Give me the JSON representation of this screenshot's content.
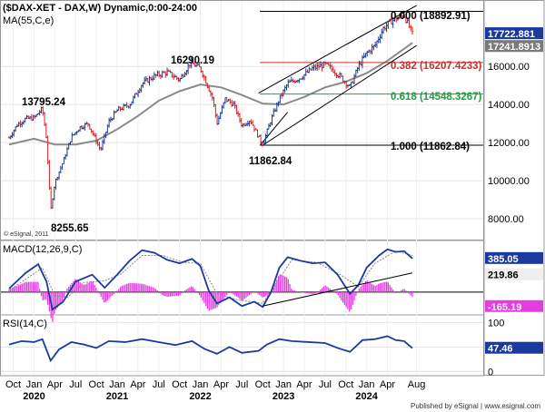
{
  "header": {
    "symbol": "($DAX-XET - DAX,W) Dynamic,0:00-24:00",
    "ma_label": "MA(55,C,e)",
    "copyright": "© eSignal, 2011",
    "footer": "Published by eSignal | www.esignal.com"
  },
  "colors": {
    "up": "#1a3a8c",
    "down": "#d42020",
    "ma": "#8a8a8a",
    "macd": "#1a3aa0",
    "signal": "#888888",
    "hist": "#e23ee0",
    "fib_red": "#c83030",
    "fib_green": "#20a040",
    "rsi": "#1a3aa0",
    "channel": "#000000"
  },
  "chart_data": [
    {
      "type": "candlestick",
      "panel": "price",
      "title": "($DAX-XET - DAX,W) Dynamic,0:00-24:00",
      "ylim": [
        7000,
        19300
      ],
      "yticks": [
        8000,
        10000,
        12000,
        14000,
        16000
      ],
      "price_scale_labels": [
        "17722.881",
        "17241.8913"
      ],
      "annotations": [
        "13795.24",
        "16290.19",
        "8255.65",
        "11862.84"
      ],
      "fib_levels": [
        {
          "label": "0.000 (18892.91)",
          "value": 18892.91,
          "color": "black"
        },
        {
          "label": "0.382 (16207.4233)",
          "value": 16207.42,
          "color": "red"
        },
        {
          "label": "0.618 (14548.3267)",
          "value": 14548.33,
          "color": "green"
        },
        {
          "label": "1.000 (11862.84)",
          "value": 11862.84,
          "color": "black"
        }
      ],
      "series_points": [
        {
          "d": 2019.7,
          "c": 12250
        },
        {
          "d": 2019.8,
          "c": 12950
        },
        {
          "d": 2019.9,
          "c": 13250
        },
        {
          "d": 2020.0,
          "c": 13300
        },
        {
          "d": 2020.1,
          "c": 13780
        },
        {
          "d": 2020.15,
          "c": 12200
        },
        {
          "d": 2020.2,
          "c": 8400
        },
        {
          "d": 2020.25,
          "c": 9900
        },
        {
          "d": 2020.35,
          "c": 11000
        },
        {
          "d": 2020.45,
          "c": 12300
        },
        {
          "d": 2020.55,
          "c": 12800
        },
        {
          "d": 2020.65,
          "c": 13000
        },
        {
          "d": 2020.8,
          "c": 11600
        },
        {
          "d": 2020.9,
          "c": 13100
        },
        {
          "d": 2021.0,
          "c": 13700
        },
        {
          "d": 2021.15,
          "c": 14000
        },
        {
          "d": 2021.3,
          "c": 15100
        },
        {
          "d": 2021.45,
          "c": 15500
        },
        {
          "d": 2021.6,
          "c": 15700
        },
        {
          "d": 2021.75,
          "c": 15300
        },
        {
          "d": 2021.88,
          "c": 16200
        },
        {
          "d": 2022.0,
          "c": 15900
        },
        {
          "d": 2022.05,
          "c": 15400
        },
        {
          "d": 2022.15,
          "c": 14300
        },
        {
          "d": 2022.2,
          "c": 13000
        },
        {
          "d": 2022.3,
          "c": 14300
        },
        {
          "d": 2022.4,
          "c": 14000
        },
        {
          "d": 2022.5,
          "c": 12900
        },
        {
          "d": 2022.6,
          "c": 13200
        },
        {
          "d": 2022.7,
          "c": 12300
        },
        {
          "d": 2022.75,
          "c": 11900
        },
        {
          "d": 2022.85,
          "c": 13200
        },
        {
          "d": 2022.95,
          "c": 14300
        },
        {
          "d": 2023.05,
          "c": 15100
        },
        {
          "d": 2023.2,
          "c": 15400
        },
        {
          "d": 2023.35,
          "c": 15900
        },
        {
          "d": 2023.5,
          "c": 16100
        },
        {
          "d": 2023.6,
          "c": 15800
        },
        {
          "d": 2023.7,
          "c": 15400
        },
        {
          "d": 2023.8,
          "c": 14900
        },
        {
          "d": 2023.9,
          "c": 16000
        },
        {
          "d": 2024.0,
          "c": 16700
        },
        {
          "d": 2024.1,
          "c": 17100
        },
        {
          "d": 2024.2,
          "c": 18000
        },
        {
          "d": 2024.3,
          "c": 18400
        },
        {
          "d": 2024.4,
          "c": 18600
        },
        {
          "d": 2024.45,
          "c": 18700
        },
        {
          "d": 2024.5,
          "c": 18200
        },
        {
          "d": 2024.55,
          "c": 17700
        }
      ],
      "ma_series": {
        "name": "MA(55,C,e)",
        "points": [
          {
            "d": 2019.7,
            "v": 11900
          },
          {
            "d": 2020.0,
            "v": 12200
          },
          {
            "d": 2020.25,
            "v": 11900
          },
          {
            "d": 2020.5,
            "v": 11900
          },
          {
            "d": 2020.75,
            "v": 12100
          },
          {
            "d": 2021.0,
            "v": 12700
          },
          {
            "d": 2021.25,
            "v": 13400
          },
          {
            "d": 2021.5,
            "v": 14200
          },
          {
            "d": 2021.75,
            "v": 14700
          },
          {
            "d": 2022.0,
            "v": 15050
          },
          {
            "d": 2022.25,
            "v": 14900
          },
          {
            "d": 2022.5,
            "v": 14500
          },
          {
            "d": 2022.75,
            "v": 14050
          },
          {
            "d": 2023.0,
            "v": 14000
          },
          {
            "d": 2023.25,
            "v": 14400
          },
          {
            "d": 2023.5,
            "v": 14900
          },
          {
            "d": 2023.75,
            "v": 15200
          },
          {
            "d": 2024.0,
            "v": 15650
          },
          {
            "d": 2024.25,
            "v": 16300
          },
          {
            "d": 2024.55,
            "v": 17240
          }
        ]
      },
      "channel": {
        "lower": [
          {
            "d": 2022.75,
            "v": 11862.84
          },
          {
            "d": 2024.6,
            "v": 17100
          }
        ],
        "upper": [
          {
            "d": 2022.7,
            "v": 14600
          },
          {
            "d": 2024.6,
            "v": 19200
          }
        ],
        "bottom_line": [
          {
            "d": 2022.72,
            "v": 11862.84
          },
          {
            "d": 2023.05,
            "v": 13600
          }
        ]
      }
    },
    {
      "type": "line",
      "panel": "macd",
      "title": "MACD(12,26,9,C)",
      "ylim": [
        -230,
        560
      ],
      "price_scale_labels": [
        "385.05",
        "219.86",
        "-165.19"
      ],
      "series": [
        {
          "name": "MACD",
          "points": [
            {
              "d": 2019.7,
              "v": 40
            },
            {
              "d": 2019.9,
              "v": 220
            },
            {
              "d": 2020.05,
              "v": 320
            },
            {
              "d": 2020.15,
              "v": 120
            },
            {
              "d": 2020.22,
              "v": -200
            },
            {
              "d": 2020.35,
              "v": -110
            },
            {
              "d": 2020.5,
              "v": 120
            },
            {
              "d": 2020.7,
              "v": 200
            },
            {
              "d": 2020.85,
              "v": 50
            },
            {
              "d": 2021.0,
              "v": 200
            },
            {
              "d": 2021.15,
              "v": 360
            },
            {
              "d": 2021.3,
              "v": 480
            },
            {
              "d": 2021.45,
              "v": 450
            },
            {
              "d": 2021.6,
              "v": 370
            },
            {
              "d": 2021.75,
              "v": 330
            },
            {
              "d": 2021.9,
              "v": 380
            },
            {
              "d": 2022.0,
              "v": 300
            },
            {
              "d": 2022.1,
              "v": 20
            },
            {
              "d": 2022.2,
              "v": -130
            },
            {
              "d": 2022.35,
              "v": -60
            },
            {
              "d": 2022.5,
              "v": -160
            },
            {
              "d": 2022.65,
              "v": -110
            },
            {
              "d": 2022.75,
              "v": -170
            },
            {
              "d": 2022.85,
              "v": 0
            },
            {
              "d": 2022.95,
              "v": 280
            },
            {
              "d": 2023.05,
              "v": 400
            },
            {
              "d": 2023.2,
              "v": 360
            },
            {
              "d": 2023.35,
              "v": 330
            },
            {
              "d": 2023.5,
              "v": 340
            },
            {
              "d": 2023.65,
              "v": 200
            },
            {
              "d": 2023.8,
              "v": -20
            },
            {
              "d": 2023.9,
              "v": 80
            },
            {
              "d": 2024.0,
              "v": 280
            },
            {
              "d": 2024.15,
              "v": 420
            },
            {
              "d": 2024.25,
              "v": 490
            },
            {
              "d": 2024.35,
              "v": 460
            },
            {
              "d": 2024.45,
              "v": 470
            },
            {
              "d": 2024.55,
              "v": 385
            }
          ]
        },
        {
          "name": "Signal",
          "points": [
            {
              "d": 2019.7,
              "v": 20
            },
            {
              "d": 2019.95,
              "v": 180
            },
            {
              "d": 2020.1,
              "v": 280
            },
            {
              "d": 2020.25,
              "v": -40
            },
            {
              "d": 2020.4,
              "v": -60
            },
            {
              "d": 2020.6,
              "v": 110
            },
            {
              "d": 2020.85,
              "v": 130
            },
            {
              "d": 2021.05,
              "v": 210
            },
            {
              "d": 2021.3,
              "v": 420
            },
            {
              "d": 2021.55,
              "v": 420
            },
            {
              "d": 2021.8,
              "v": 340
            },
            {
              "d": 2022.0,
              "v": 330
            },
            {
              "d": 2022.2,
              "v": -20
            },
            {
              "d": 2022.45,
              "v": -90
            },
            {
              "d": 2022.75,
              "v": -130
            },
            {
              "d": 2022.95,
              "v": 150
            },
            {
              "d": 2023.1,
              "v": 370
            },
            {
              "d": 2023.4,
              "v": 340
            },
            {
              "d": 2023.7,
              "v": 190
            },
            {
              "d": 2023.9,
              "v": 60
            },
            {
              "d": 2024.1,
              "v": 330
            },
            {
              "d": 2024.35,
              "v": 470
            },
            {
              "d": 2024.55,
              "v": 420
            }
          ]
        }
      ],
      "trendline": [
        {
          "d": 2022.75,
          "v": -160
        },
        {
          "d": 2024.55,
          "v": 220
        }
      ]
    },
    {
      "type": "line",
      "panel": "rsi",
      "title": "RSI(14,C)",
      "ylim": [
        -5,
        110
      ],
      "yticks": [
        0,
        50,
        100
      ],
      "price_scale_labels": [
        "47.46"
      ],
      "series": [
        {
          "name": "RSI",
          "points": [
            {
              "d": 2019.7,
              "v": 55
            },
            {
              "d": 2019.85,
              "v": 62
            },
            {
              "d": 2020.0,
              "v": 60
            },
            {
              "d": 2020.1,
              "v": 66
            },
            {
              "d": 2020.2,
              "v": 22
            },
            {
              "d": 2020.3,
              "v": 45
            },
            {
              "d": 2020.45,
              "v": 60
            },
            {
              "d": 2020.6,
              "v": 55
            },
            {
              "d": 2020.75,
              "v": 48
            },
            {
              "d": 2020.9,
              "v": 62
            },
            {
              "d": 2021.1,
              "v": 60
            },
            {
              "d": 2021.3,
              "v": 66
            },
            {
              "d": 2021.5,
              "v": 60
            },
            {
              "d": 2021.7,
              "v": 54
            },
            {
              "d": 2021.9,
              "v": 62
            },
            {
              "d": 2022.05,
              "v": 46
            },
            {
              "d": 2022.2,
              "v": 36
            },
            {
              "d": 2022.35,
              "v": 50
            },
            {
              "d": 2022.5,
              "v": 38
            },
            {
              "d": 2022.7,
              "v": 42
            },
            {
              "d": 2022.8,
              "v": 55
            },
            {
              "d": 2022.95,
              "v": 66
            },
            {
              "d": 2023.1,
              "v": 62
            },
            {
              "d": 2023.3,
              "v": 60
            },
            {
              "d": 2023.5,
              "v": 58
            },
            {
              "d": 2023.65,
              "v": 48
            },
            {
              "d": 2023.8,
              "v": 40
            },
            {
              "d": 2023.95,
              "v": 64
            },
            {
              "d": 2024.1,
              "v": 66
            },
            {
              "d": 2024.25,
              "v": 72
            },
            {
              "d": 2024.35,
              "v": 64
            },
            {
              "d": 2024.45,
              "v": 62
            },
            {
              "d": 2024.55,
              "v": 47.46
            }
          ]
        }
      ]
    }
  ],
  "x_axis": {
    "month_ticks": [
      {
        "d": 2019.75,
        "label": "Oct"
      },
      {
        "d": 2020.0,
        "label": "Jan"
      },
      {
        "d": 2020.25,
        "label": "Apr"
      },
      {
        "d": 2020.5,
        "label": "Jul"
      },
      {
        "d": 2020.75,
        "label": "Oct"
      },
      {
        "d": 2021.0,
        "label": "Jan"
      },
      {
        "d": 2021.25,
        "label": "Apr"
      },
      {
        "d": 2021.5,
        "label": "Jul"
      },
      {
        "d": 2021.75,
        "label": "Oct"
      },
      {
        "d": 2022.0,
        "label": "Jan"
      },
      {
        "d": 2022.25,
        "label": "Apr"
      },
      {
        "d": 2022.5,
        "label": "Jul"
      },
      {
        "d": 2022.75,
        "label": "Oct"
      },
      {
        "d": 2023.0,
        "label": "Jan"
      },
      {
        "d": 2023.25,
        "label": "Apr"
      },
      {
        "d": 2023.5,
        "label": "Jul"
      },
      {
        "d": 2023.75,
        "label": "Oct"
      },
      {
        "d": 2024.0,
        "label": "Jan"
      },
      {
        "d": 2024.25,
        "label": "Apr"
      },
      {
        "d": 2024.6,
        "label": "Aug"
      }
    ],
    "year_labels": [
      {
        "d": 2020.0,
        "label": "2020"
      },
      {
        "d": 2021.0,
        "label": "2021"
      },
      {
        "d": 2022.0,
        "label": "2022"
      },
      {
        "d": 2023.0,
        "label": "2023"
      },
      {
        "d": 2024.0,
        "label": "2024"
      }
    ]
  }
}
